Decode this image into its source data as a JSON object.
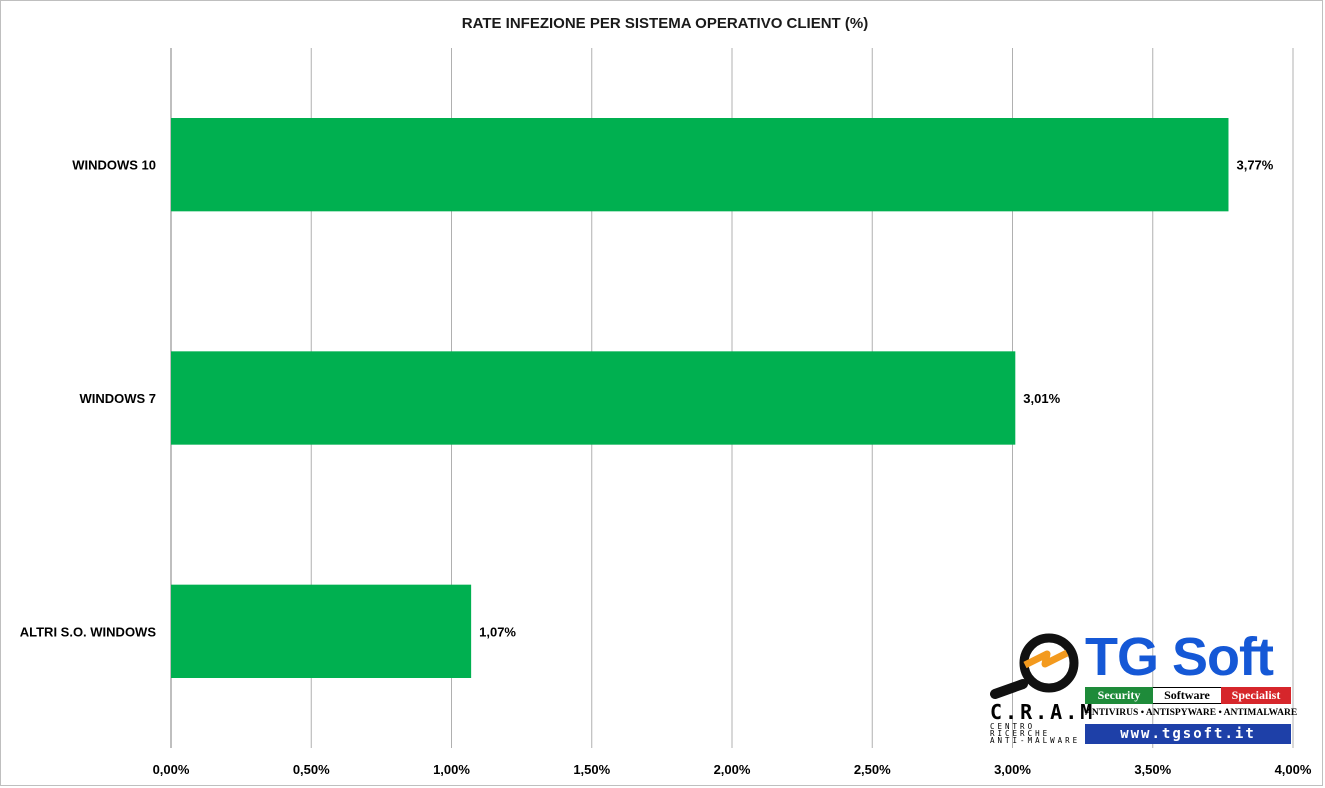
{
  "chart_data": {
    "type": "bar",
    "orientation": "horizontal",
    "title": "RATE INFEZIONE PER SISTEMA OPERATIVO CLIENT (%)",
    "categories": [
      "WINDOWS 10",
      "WINDOWS 7",
      "ALTRI S.O. WINDOWS"
    ],
    "values": [
      3.77,
      3.01,
      1.07
    ],
    "value_labels": [
      "3,77%",
      "3,01%",
      "1,07%"
    ],
    "xlim": [
      0,
      4
    ],
    "x_ticks": [
      0,
      0.5,
      1,
      1.5,
      2,
      2.5,
      3,
      3.5,
      4
    ],
    "x_tick_labels": [
      "0,00%",
      "0,50%",
      "1,00%",
      "1,50%",
      "2,00%",
      "2,50%",
      "3,00%",
      "3,50%",
      "4,00%"
    ],
    "xlabel": "",
    "ylabel": "",
    "grid": true,
    "legend": "none",
    "bar_color": "#00b050"
  },
  "logo": {
    "brand": "TG Soft",
    "band": [
      "Security",
      "Software",
      "Specialist"
    ],
    "tagline": "ANTIVIRUS • ANTISPYWARE • ANTIMALWARE",
    "website": "www.tgsoft.it",
    "cram_word": "C.R.A.M",
    "cram_sub": "CENTRO RICERCHE ANTI-MALWARE"
  }
}
